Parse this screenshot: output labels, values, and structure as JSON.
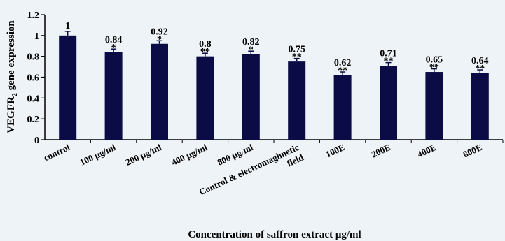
{
  "colors": {
    "bar": "#0b0b45",
    "background": "#eef3f7",
    "axis": "#000000"
  },
  "chart_data": {
    "type": "bar",
    "title": "",
    "xlabel": "Concentration of saffron extract μg/ml",
    "ylabel": "VEGFR2 gene expression",
    "ylim": [
      0,
      1.2
    ],
    "yticks": [
      "0",
      "0.2",
      "0.4",
      "0.6",
      "0.8",
      "1",
      "1.2"
    ],
    "categories": [
      [
        "control"
      ],
      [
        "100 μg/ml"
      ],
      [
        "200 μg/ml"
      ],
      [
        "400 μg/ml"
      ],
      [
        "800 μg/ml"
      ],
      [
        "Control & electromaghnetic",
        "field"
      ],
      [
        "100E"
      ],
      [
        "200E"
      ],
      [
        "400E"
      ],
      [
        "800E"
      ]
    ],
    "values": [
      1,
      0.84,
      0.92,
      0.8,
      0.82,
      0.75,
      0.62,
      0.71,
      0.65,
      0.64
    ],
    "value_labels": [
      "1",
      "0.84",
      "0.92",
      "0.8",
      "0.82",
      "0.75",
      "0.62",
      "0.71",
      "0.65",
      "0.64"
    ],
    "errors": [
      0.04,
      0.03,
      0.03,
      0.03,
      0.03,
      0.03,
      0.03,
      0.03,
      0.03,
      0.03
    ],
    "significance": [
      "",
      "*",
      "*",
      "**",
      "*",
      "**",
      "**",
      "**",
      "**",
      "**"
    ],
    "grid": false,
    "legend": "none"
  }
}
